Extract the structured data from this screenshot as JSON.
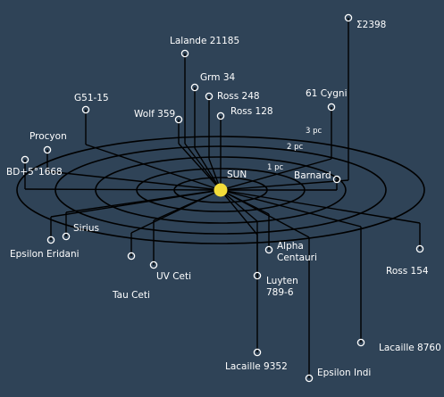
{
  "center": {
    "label": "SUN",
    "color": "#f2dc3a"
  },
  "colors": {
    "background": "#2f4357",
    "line": "#000000",
    "text": "#ffffff"
  },
  "rings": [
    {
      "label": "1 pc"
    },
    {
      "label": "2 pc"
    },
    {
      "label": "3 pc"
    }
  ],
  "stars": [
    {
      "id": "sigma-2398",
      "label": "Σ2398"
    },
    {
      "id": "lalande-21185",
      "label": "Lalande 21185"
    },
    {
      "id": "grm-34",
      "label": "Grm 34"
    },
    {
      "id": "ross-248",
      "label": "Ross 248"
    },
    {
      "id": "g51-15",
      "label": "G51-15"
    },
    {
      "id": "61-cygni",
      "label": "61 Cygni"
    },
    {
      "id": "wolf-359",
      "label": "Wolf 359"
    },
    {
      "id": "ross-128",
      "label": "Ross 128"
    },
    {
      "id": "procyon",
      "label": "Procyon"
    },
    {
      "id": "bd-5-1668",
      "label": "BD+5°1668"
    },
    {
      "id": "barnard",
      "label": "Barnard"
    },
    {
      "id": "sirius",
      "label": "Sirius"
    },
    {
      "id": "epsilon-eridani",
      "label": "Epsilon Eridani"
    },
    {
      "id": "alpha-centauri",
      "label": "Alpha\nCentauri"
    },
    {
      "id": "ross-154",
      "label": "Ross 154"
    },
    {
      "id": "uv-ceti",
      "label": "UV Ceti"
    },
    {
      "id": "luyten-789-6",
      "label": "Luyten\n789-6"
    },
    {
      "id": "tau-ceti",
      "label": "Tau Ceti"
    },
    {
      "id": "lacaille-8760",
      "label": "Lacaille 8760"
    },
    {
      "id": "lacaille-9352",
      "label": "Lacaille 9352"
    },
    {
      "id": "epsilon-indi",
      "label": "Epsilon Indi"
    }
  ]
}
